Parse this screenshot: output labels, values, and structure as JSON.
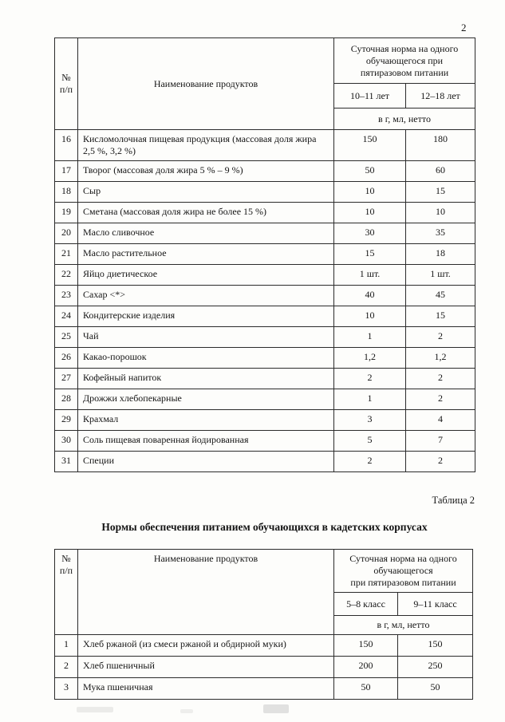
{
  "page": {
    "number": "2"
  },
  "labels": {
    "table2_label": "Таблица 2",
    "section_title": "Нормы обеспечения питанием обучающихся в кадетских корпусах"
  },
  "table1": {
    "header": {
      "num": "№\nп/п",
      "name": "Наименование продуктов",
      "norm": "Суточная норма на одного\nобучающегося при\nпятиразовом питании",
      "col1": "10–11 лет",
      "col2": "12–18 лет",
      "units": "в г, мл, нетто"
    },
    "rows": [
      {
        "num": "16",
        "name": "Кисломолочная пищевая продукция (массовая доля жира 2,5 %, 3,2 %)",
        "v1": "150",
        "v2": "180"
      },
      {
        "num": "17",
        "name": "Творог (массовая доля жира 5 % – 9 %)",
        "v1": "50",
        "v2": "60"
      },
      {
        "num": "18",
        "name": "Сыр",
        "v1": "10",
        "v2": "15"
      },
      {
        "num": "19",
        "name": "Сметана (массовая доля жира не более 15 %)",
        "v1": "10",
        "v2": "10"
      },
      {
        "num": "20",
        "name": "Масло сливочное",
        "v1": "30",
        "v2": "35"
      },
      {
        "num": "21",
        "name": "Масло растительное",
        "v1": "15",
        "v2": "18"
      },
      {
        "num": "22",
        "name": "Яйцо диетическое",
        "v1": "1 шт.",
        "v2": "1 шт."
      },
      {
        "num": "23",
        "name": "Сахар <*>",
        "v1": "40",
        "v2": "45"
      },
      {
        "num": "24",
        "name": "Кондитерские изделия",
        "v1": "10",
        "v2": "15"
      },
      {
        "num": "25",
        "name": "Чай",
        "v1": "1",
        "v2": "2"
      },
      {
        "num": "26",
        "name": "Какао-порошок",
        "v1": "1,2",
        "v2": "1,2"
      },
      {
        "num": "27",
        "name": "Кофейный напиток",
        "v1": "2",
        "v2": "2"
      },
      {
        "num": "28",
        "name": "Дрожжи хлебопекарные",
        "v1": "1",
        "v2": "2"
      },
      {
        "num": "29",
        "name": "Крахмал",
        "v1": "3",
        "v2": "4"
      },
      {
        "num": "30",
        "name": "Соль пищевая поваренная йодированная",
        "v1": "5",
        "v2": "7"
      },
      {
        "num": "31",
        "name": "Специи",
        "v1": "2",
        "v2": "2"
      }
    ]
  },
  "table2": {
    "header": {
      "num": "№\nп/п",
      "name": "Наименование продуктов",
      "norm": "Суточная норма на одного\nобучающегося\nпри пятиразовом питании",
      "col1": "5–8 класс",
      "col2": "9–11 класс",
      "units": "в г, мл, нетто"
    },
    "rows": [
      {
        "num": "1",
        "name": "Хлеб ржаной (из смеси ржаной и обдирной муки)",
        "v1": "150",
        "v2": "150"
      },
      {
        "num": "2",
        "name": "Хлеб пшеничный",
        "v1": "200",
        "v2": "250"
      },
      {
        "num": "3",
        "name": "Мука пшеничная",
        "v1": "50",
        "v2": "50"
      }
    ]
  }
}
